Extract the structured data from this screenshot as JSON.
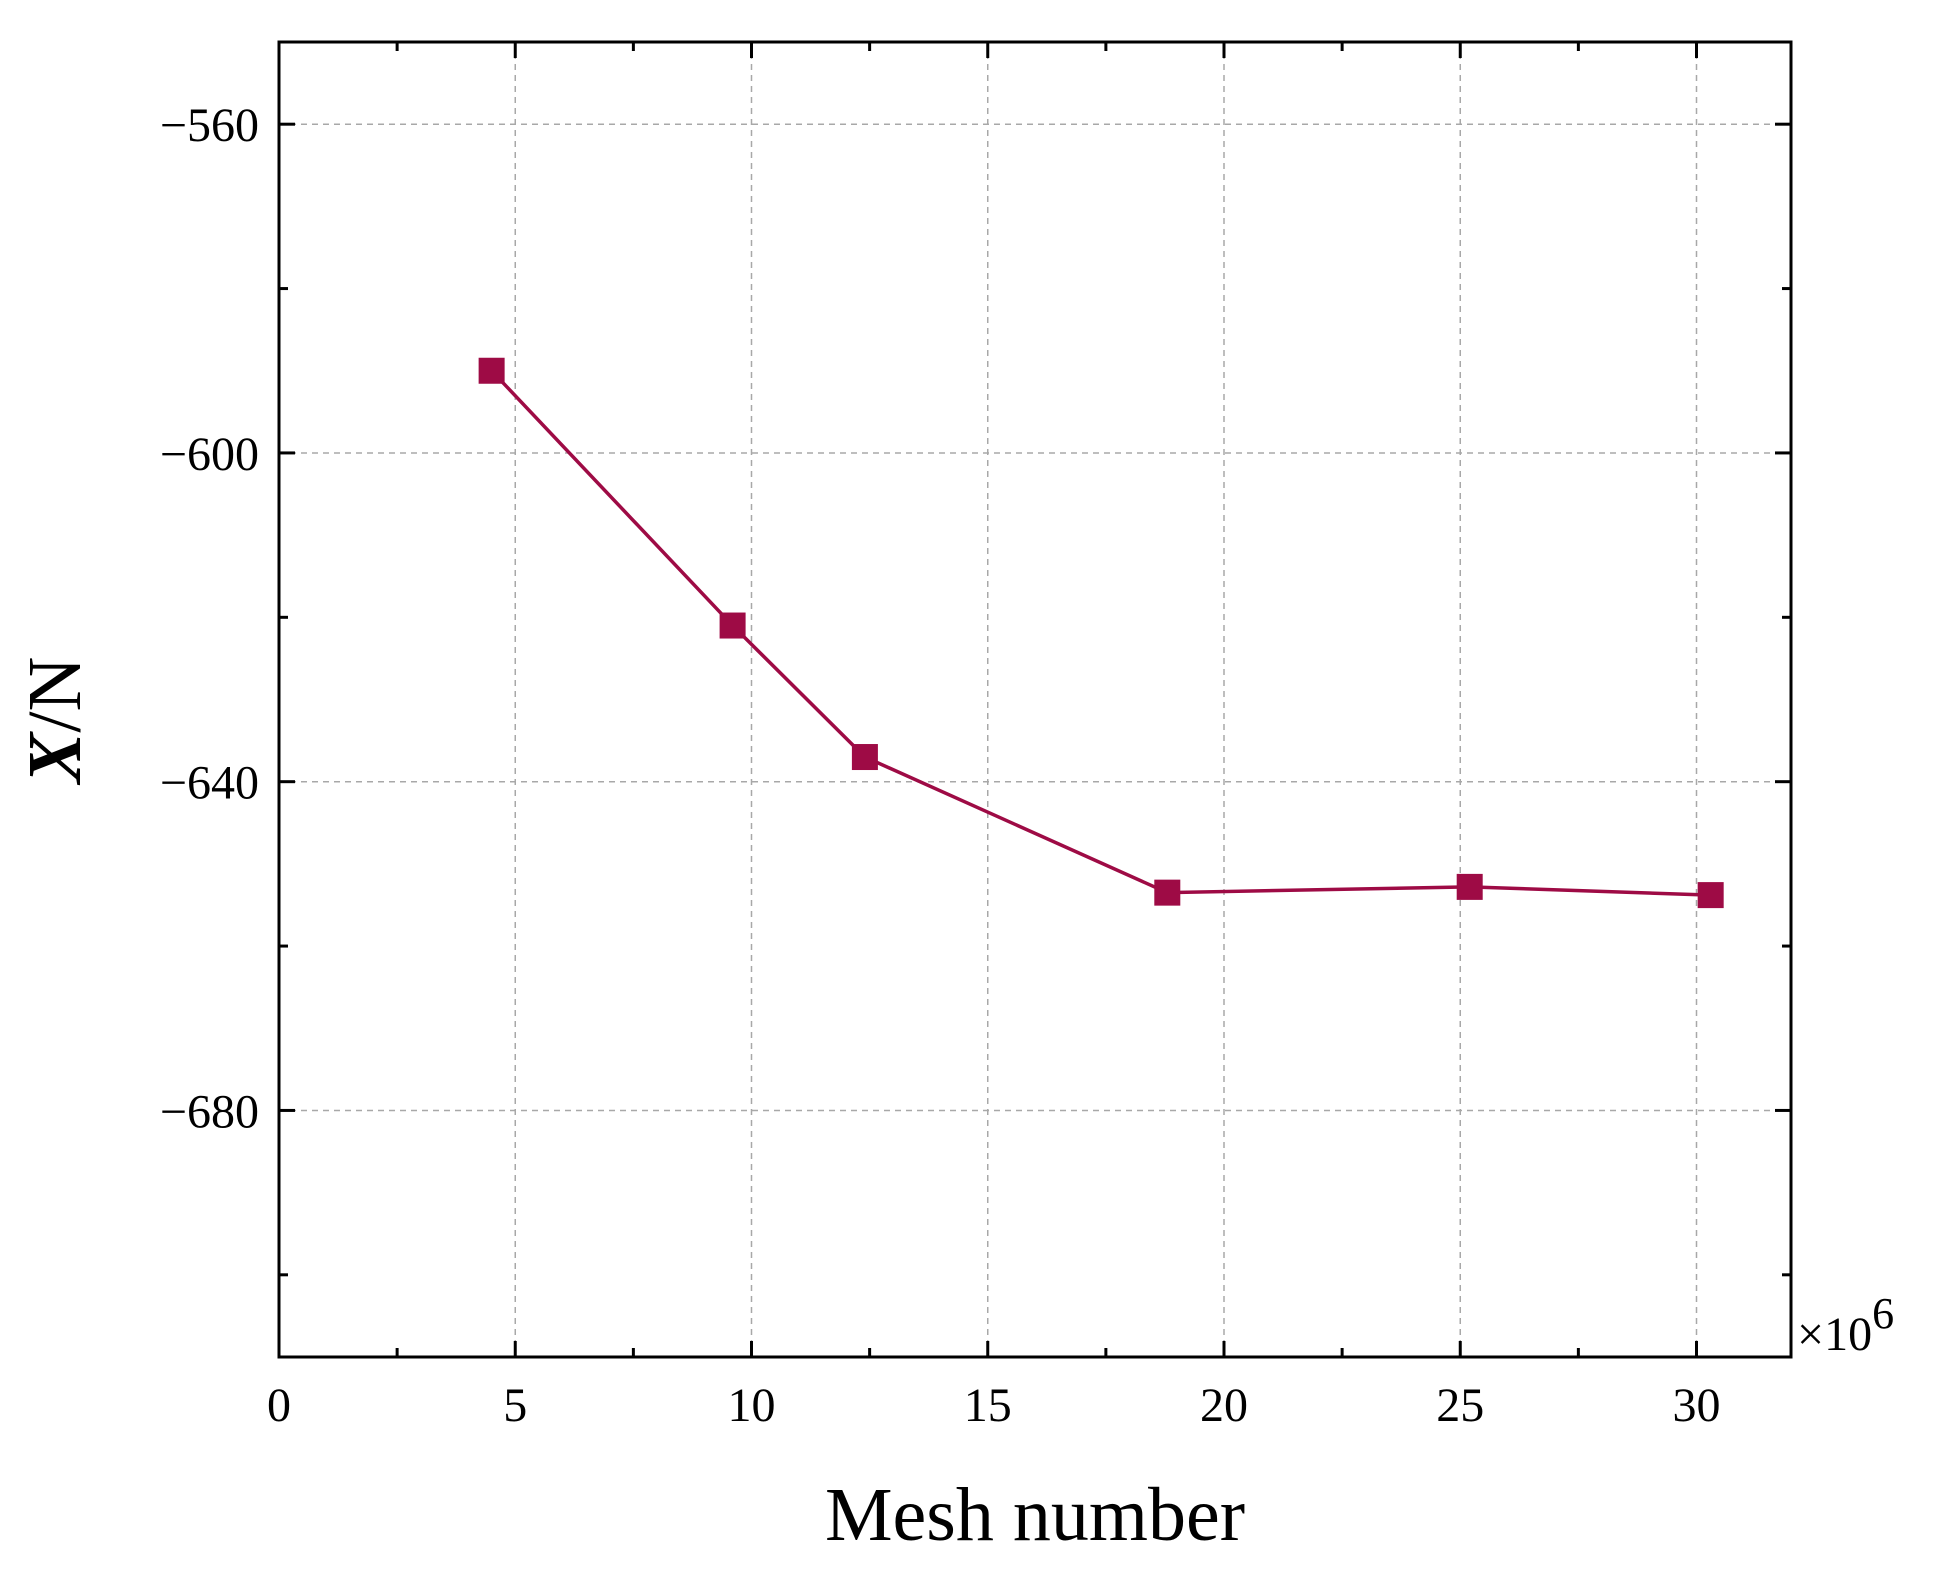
{
  "chart_data": {
    "type": "line",
    "title": "",
    "xlabel": "Mesh number",
    "ylabel_var": "X",
    "ylabel_unit": "/N",
    "x_multiplier_base": "×10",
    "x_multiplier_exp": "6",
    "xlim": [
      0,
      32
    ],
    "ylim": [
      -710,
      -550
    ],
    "x_ticks": [
      0,
      5,
      10,
      15,
      20,
      25,
      30
    ],
    "x_tick_labels": [
      "0",
      "5",
      "10",
      "15",
      "20",
      "25",
      "30"
    ],
    "x_minor_ticks": [
      2.5,
      7.5,
      12.5,
      17.5,
      22.5,
      27.5
    ],
    "y_ticks": [
      -560,
      -600,
      -640,
      -680
    ],
    "y_tick_labels": [
      "−560",
      "−600",
      "−640",
      "−680"
    ],
    "y_minor_ticks": [
      -700,
      -660,
      -620,
      -580
    ],
    "grid": true,
    "series": [
      {
        "color": "#9e0b45",
        "marker": "square",
        "x": [
          4.5,
          9.6,
          12.4,
          18.8,
          25.2,
          30.3
        ],
        "y": [
          -590,
          -621,
          -637,
          -653.5,
          -652.8,
          -653.8
        ]
      }
    ]
  }
}
